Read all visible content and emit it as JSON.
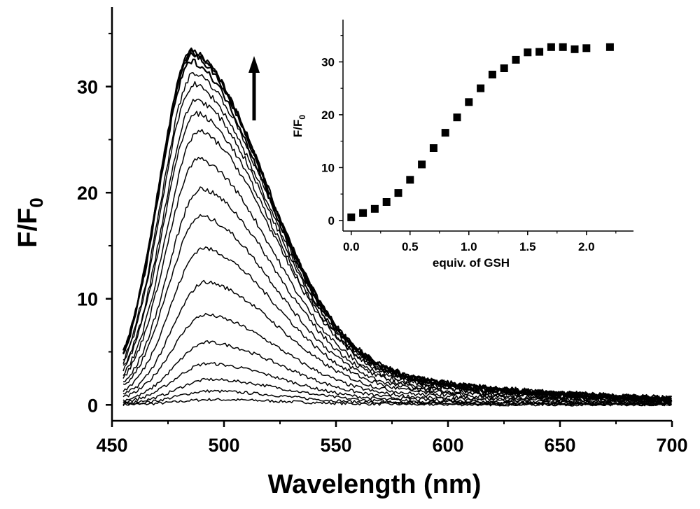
{
  "chart_data": [
    {
      "type": "line",
      "xlabel": "Wavelength (nm)",
      "ylabel_main": "F/F",
      "ylabel_sub": "0",
      "xlim": [
        450,
        700
      ],
      "ylim": [
        -1.5,
        37.5
      ],
      "x_ticks": [
        "450",
        "500",
        "550",
        "600",
        "650",
        "700"
      ],
      "y_ticks": [
        "0",
        "10",
        "20",
        "30"
      ],
      "arrow": "up",
      "series_peak_values": [
        0.5,
        1.3,
        2.4,
        3.9,
        5.9,
        8.5,
        11.6,
        14.8,
        17.8,
        20.4,
        23.2,
        25.8,
        27.5,
        28.8,
        30.2,
        31.3,
        32.4,
        33.0,
        33.3,
        33.4
      ],
      "series_peak_wavelengths": [
        495,
        494,
        494,
        493,
        493,
        492,
        492,
        491,
        490,
        490,
        489,
        489,
        488,
        488,
        487,
        487,
        486,
        486,
        486,
        486
      ]
    },
    {
      "type": "scatter",
      "xlabel": "equiv. of GSH",
      "ylabel_main": "F/F",
      "ylabel_sub": "0",
      "xlim": [
        -0.07,
        2.4
      ],
      "ylim": [
        -2,
        38
      ],
      "x_ticks": [
        "0.0",
        "0.5",
        "1.0",
        "1.5",
        "2.0"
      ],
      "y_ticks": [
        "0",
        "10",
        "20",
        "30"
      ],
      "x": [
        0.0,
        0.1,
        0.2,
        0.3,
        0.4,
        0.5,
        0.6,
        0.7,
        0.8,
        0.9,
        1.0,
        1.1,
        1.2,
        1.3,
        1.4,
        1.5,
        1.6,
        1.7,
        1.8,
        1.9,
        2.0,
        2.2
      ],
      "y": [
        0.6,
        1.4,
        2.2,
        3.5,
        5.2,
        7.7,
        10.6,
        13.7,
        16.6,
        19.5,
        22.4,
        25.0,
        27.6,
        28.8,
        30.4,
        31.8,
        31.9,
        32.8,
        32.8,
        32.4,
        32.6,
        32.8
      ]
    }
  ]
}
